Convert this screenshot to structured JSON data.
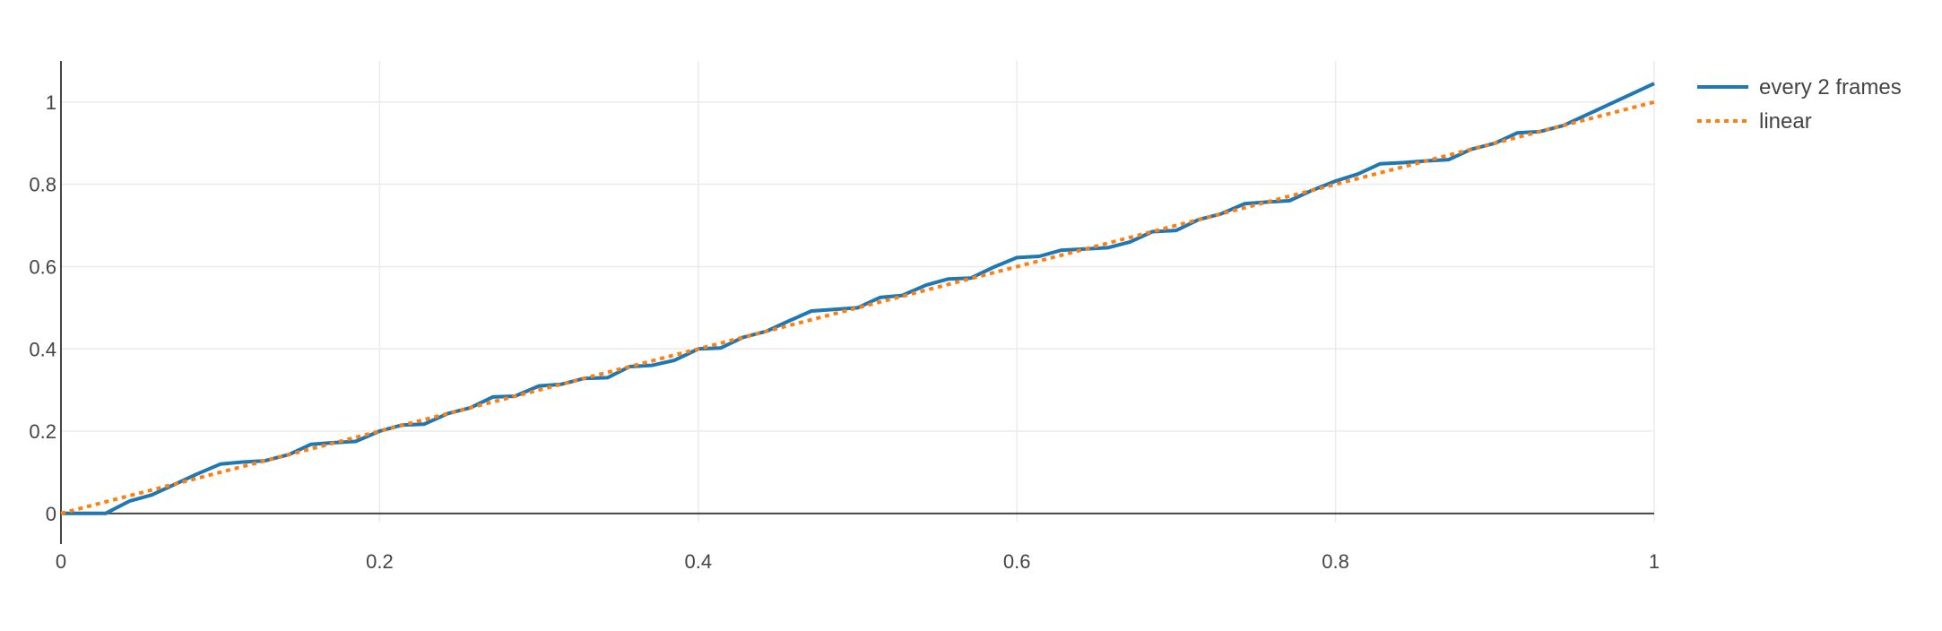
{
  "chart_data": {
    "type": "line",
    "xlim": [
      0,
      1
    ],
    "ylim": [
      -0.02,
      1.1
    ],
    "x_ticks": [
      "0",
      "0.2",
      "0.4",
      "0.6",
      "0.8",
      "1"
    ],
    "y_ticks": [
      "0",
      "0.2",
      "0.4",
      "0.6",
      "0.8",
      "1"
    ],
    "grid": true,
    "legend_position": "top-right",
    "series": [
      {
        "name": "every 2 frames",
        "color": "#1f77b4",
        "dash": "solid",
        "x": [
          0,
          0.014,
          0.028,
          0.043,
          0.057,
          0.071,
          0.085,
          0.1,
          0.114,
          0.128,
          0.143,
          0.157,
          0.171,
          0.185,
          0.2,
          0.214,
          0.228,
          0.243,
          0.257,
          0.271,
          0.285,
          0.3,
          0.314,
          0.328,
          0.343,
          0.357,
          0.371,
          0.385,
          0.4,
          0.414,
          0.428,
          0.443,
          0.457,
          0.471,
          0.485,
          0.5,
          0.514,
          0.528,
          0.543,
          0.557,
          0.571,
          0.585,
          0.6,
          0.614,
          0.628,
          0.643,
          0.657,
          0.671,
          0.685,
          0.7,
          0.714,
          0.728,
          0.743,
          0.757,
          0.771,
          0.785,
          0.8,
          0.814,
          0.828,
          0.843,
          0.857,
          0.871,
          0.885,
          0.9,
          0.914,
          0.928,
          0.943,
          0.957,
          0.971,
          0.985,
          1.0
        ],
        "y": [
          0,
          0,
          0,
          0.03,
          0.045,
          0.07,
          0.095,
          0.12,
          0.125,
          0.128,
          0.143,
          0.168,
          0.172,
          0.175,
          0.2,
          0.215,
          0.217,
          0.243,
          0.257,
          0.283,
          0.285,
          0.31,
          0.314,
          0.328,
          0.33,
          0.357,
          0.36,
          0.372,
          0.4,
          0.402,
          0.428,
          0.443,
          0.468,
          0.492,
          0.496,
          0.5,
          0.525,
          0.53,
          0.555,
          0.57,
          0.572,
          0.598,
          0.622,
          0.625,
          0.64,
          0.643,
          0.646,
          0.66,
          0.685,
          0.688,
          0.714,
          0.728,
          0.753,
          0.757,
          0.76,
          0.785,
          0.808,
          0.825,
          0.85,
          0.853,
          0.857,
          0.86,
          0.885,
          0.9,
          0.925,
          0.928,
          0.943,
          0.968,
          0.993,
          1.018,
          1.045
        ]
      },
      {
        "name": "linear",
        "color": "#ff7f0e",
        "dash": "dot",
        "x": [
          0,
          1
        ],
        "y": [
          0,
          1
        ]
      }
    ]
  }
}
